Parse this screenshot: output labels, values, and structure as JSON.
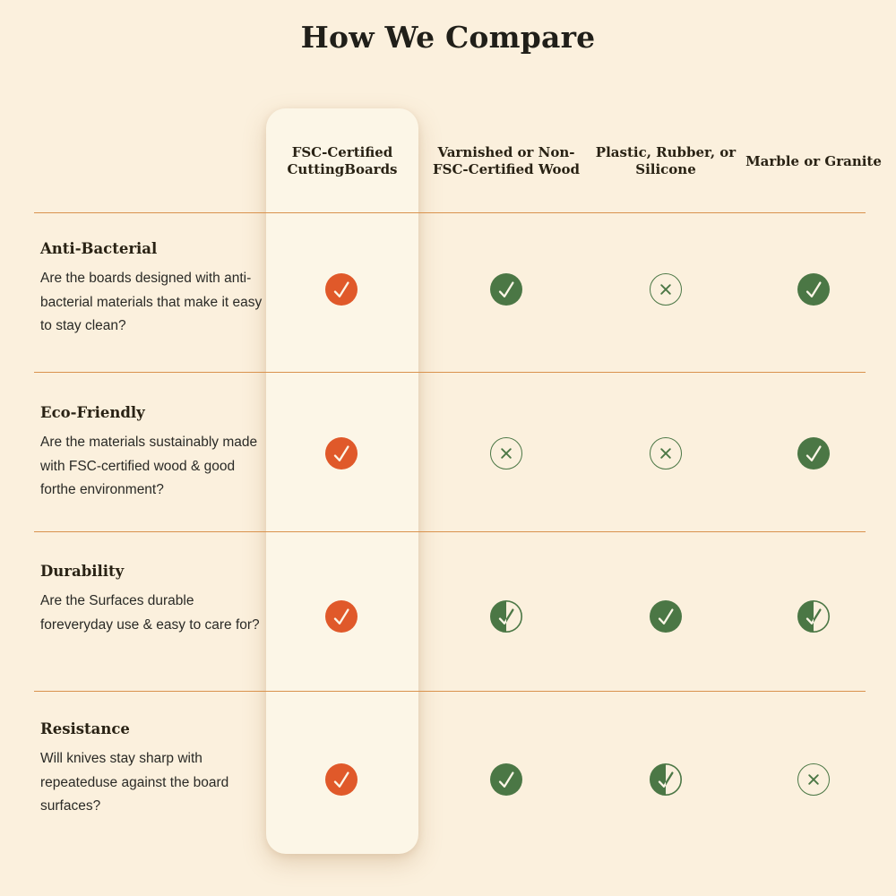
{
  "title": "How We Compare",
  "colors": {
    "background": "#FBF0DD",
    "card_background": "#FCF6E7",
    "accent_orange": "#E0592A",
    "green": "#4B7745",
    "divider": "#D9924D",
    "heading_text": "#292214",
    "body_text": "#2A2A26"
  },
  "chart_data": {
    "type": "table",
    "title": "How We Compare",
    "columns": [
      "FSC-Certified CuttingBoards",
      "Varnished or Non-FSC-Certified Wood",
      "Plastic, Rubber, or Silicone",
      "Marble or Granite"
    ],
    "highlighted_column": 0,
    "rows": [
      {
        "feature": "Anti-Bacterial",
        "question": "Are the boards designed with anti-bacterial materials that make it easy to stay clean?",
        "values": [
          "yes",
          "yes",
          "no",
          "yes"
        ]
      },
      {
        "feature": "Eco-Friendly",
        "question": "Are the materials sustainably made with FSC-certified wood & good forthe environment?",
        "values": [
          "yes",
          "no",
          "no",
          "yes"
        ]
      },
      {
        "feature": "Durability",
        "question": "Are the Surfaces durable foreveryday use & easy to care for?",
        "values": [
          "yes",
          "partial",
          "yes",
          "partial"
        ]
      },
      {
        "feature": "Resistance",
        "question": "Will knives stay sharp with repeateduse against the board surfaces?",
        "values": [
          "yes",
          "yes",
          "partial",
          "no"
        ]
      }
    ],
    "value_glyphs": {
      "yes": "check-circle",
      "no": "x-circle",
      "partial": "half-check-circle"
    }
  }
}
